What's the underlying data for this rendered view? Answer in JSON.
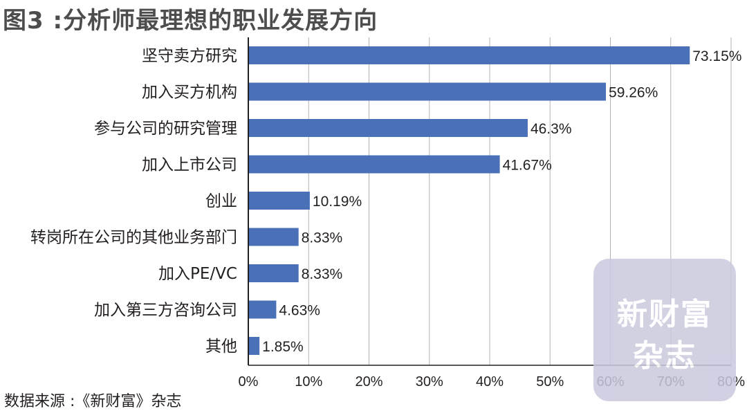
{
  "title": "图3 :分析师最理想的职业发展方向",
  "source": "数据来源 :《新财富》杂志",
  "watermark": {
    "line1": "新财富",
    "line2": "杂志"
  },
  "colors": {
    "bar": "#4a71b8",
    "grid": "#b3b3b3",
    "axis": "#231f20",
    "text": "#231f20"
  },
  "chart_data": {
    "type": "bar",
    "orientation": "horizontal",
    "title": "图3 :分析师最理想的职业发展方向",
    "xlabel": "",
    "ylabel": "",
    "xlim": [
      0,
      80
    ],
    "xticks": [
      0,
      10,
      20,
      30,
      40,
      50,
      60,
      70,
      80
    ],
    "xtick_labels": [
      "0%",
      "10%",
      "20%",
      "30%",
      "40%",
      "50%",
      "60%",
      "70%",
      "80%"
    ],
    "grid": true,
    "categories": [
      "坚守卖方研究",
      "加入买方机构",
      "参与公司的研究管理",
      "加入上市公司",
      "创业",
      "转岗所在公司的其他业务部门",
      "加入PE/VC",
      "加入第三方咨询公司",
      "其他"
    ],
    "values": [
      73.15,
      59.26,
      46.3,
      41.67,
      10.19,
      8.33,
      8.33,
      4.63,
      1.85
    ],
    "value_labels": [
      "73.15%",
      "59.26%",
      "46.3%",
      "41.67%",
      "10.19%",
      "8.33%",
      "8.33%",
      "4.63%",
      "1.85%"
    ]
  }
}
